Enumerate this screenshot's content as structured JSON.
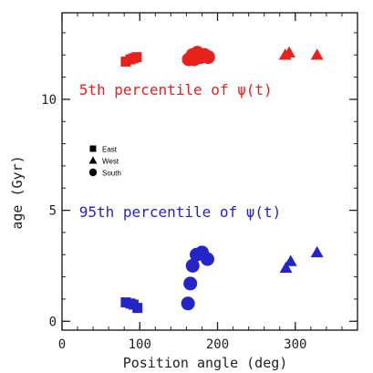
{
  "chart_data": {
    "type": "scatter",
    "xlabel": "Position angle (deg)",
    "ylabel": "age (Gyr)",
    "xlim": [
      0,
      380
    ],
    "ylim": [
      -0.4,
      13.9
    ],
    "x_major_ticks": [
      0,
      100,
      200,
      300
    ],
    "x_tick_labels": [
      "0",
      "100",
      "200",
      "300"
    ],
    "x_minor_step": 20,
    "y_major_ticks": [
      0,
      5,
      10
    ],
    "y_tick_labels": [
      "0",
      "5",
      "10"
    ],
    "y_minor_step": 1,
    "grid": false,
    "legend": {
      "placement": "left-middle",
      "entries": [
        {
          "label": "East",
          "marker": "square"
        },
        {
          "label": "West",
          "marker": "triangle"
        },
        {
          "label": "South",
          "marker": "circle"
        }
      ]
    },
    "annotations": [
      {
        "text": "5th percentile  of ψ(t)",
        "color": "#e8211d",
        "x": 22,
        "y": 10.2
      },
      {
        "text": "95th percentile of ψ(t)",
        "color": "#2424c8",
        "x": 22,
        "y": 4.7
      }
    ],
    "series": [
      {
        "group": "5th percentile",
        "color": "#e8211d",
        "points": [
          {
            "x": 82,
            "y": 11.7,
            "marker": "square"
          },
          {
            "x": 88,
            "y": 11.8,
            "marker": "square"
          },
          {
            "x": 92,
            "y": 11.85,
            "marker": "square"
          },
          {
            "x": 96,
            "y": 11.9,
            "marker": "square"
          },
          {
            "x": 163,
            "y": 11.8,
            "marker": "circle"
          },
          {
            "x": 168,
            "y": 12.0,
            "marker": "circle"
          },
          {
            "x": 170,
            "y": 11.8,
            "marker": "circle"
          },
          {
            "x": 174,
            "y": 12.1,
            "marker": "circle"
          },
          {
            "x": 178,
            "y": 11.9,
            "marker": "circle"
          },
          {
            "x": 183,
            "y": 12.0,
            "marker": "circle"
          },
          {
            "x": 188,
            "y": 11.9,
            "marker": "circle"
          },
          {
            "x": 287,
            "y": 12.0,
            "marker": "triangle"
          },
          {
            "x": 292,
            "y": 12.1,
            "marker": "triangle"
          },
          {
            "x": 328,
            "y": 12.0,
            "marker": "triangle"
          }
        ]
      },
      {
        "group": "95th percentile",
        "color": "#2424c8",
        "points": [
          {
            "x": 82,
            "y": 0.85,
            "marker": "square"
          },
          {
            "x": 88,
            "y": 0.8,
            "marker": "square"
          },
          {
            "x": 92,
            "y": 0.75,
            "marker": "square"
          },
          {
            "x": 97,
            "y": 0.6,
            "marker": "square"
          },
          {
            "x": 162,
            "y": 0.8,
            "marker": "circle"
          },
          {
            "x": 165,
            "y": 1.7,
            "marker": "circle"
          },
          {
            "x": 168,
            "y": 2.5,
            "marker": "circle"
          },
          {
            "x": 173,
            "y": 3.0,
            "marker": "circle"
          },
          {
            "x": 180,
            "y": 3.1,
            "marker": "circle"
          },
          {
            "x": 187,
            "y": 2.8,
            "marker": "circle"
          },
          {
            "x": 288,
            "y": 2.4,
            "marker": "triangle"
          },
          {
            "x": 294,
            "y": 2.7,
            "marker": "triangle"
          },
          {
            "x": 328,
            "y": 3.1,
            "marker": "triangle"
          }
        ]
      }
    ]
  }
}
